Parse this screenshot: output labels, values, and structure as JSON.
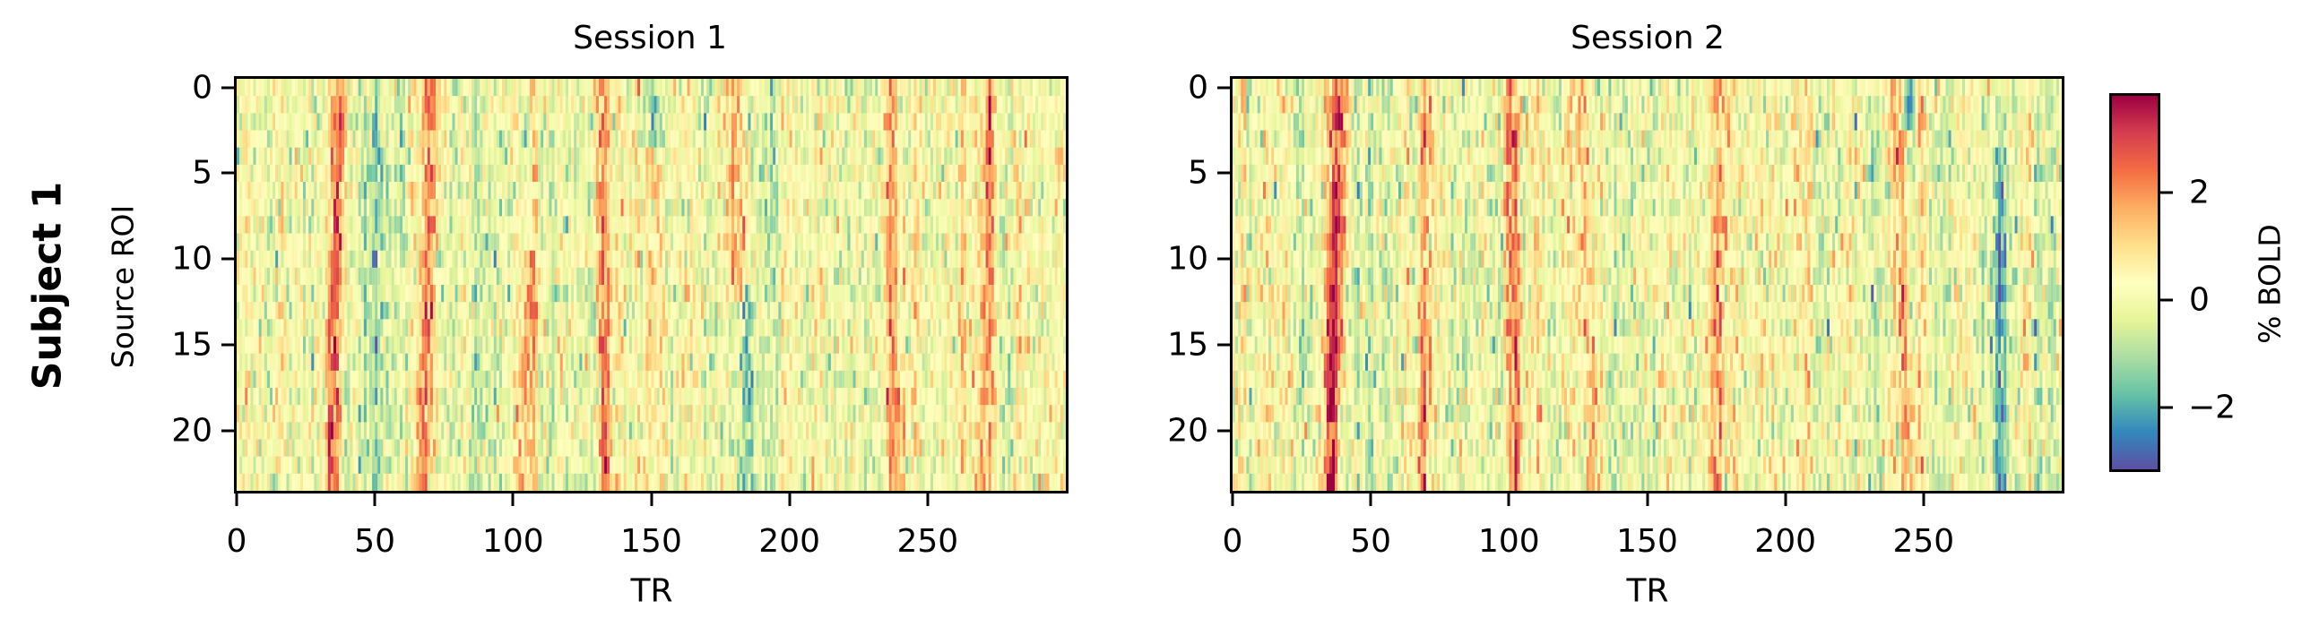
{
  "figure": {
    "row_label": "Subject 1",
    "panels": [
      {
        "title": "Session 1",
        "ylabel": "Source ROI",
        "xlabel": "TR",
        "xticks": [
          "0",
          "50",
          "100",
          "150",
          "200",
          "250"
        ],
        "yticks": [
          "0",
          "5",
          "10",
          "15",
          "20"
        ]
      },
      {
        "title": "Session 2",
        "ylabel": "",
        "xlabel": "TR",
        "xticks": [
          "0",
          "50",
          "100",
          "150",
          "200",
          "250"
        ],
        "yticks": [
          "0",
          "5",
          "10",
          "15",
          "20"
        ]
      }
    ],
    "colorbar": {
      "label": "% BOLD",
      "ticks": [
        "2",
        "0",
        "−2"
      ],
      "tick_values": [
        2,
        0,
        -2
      ],
      "vmin": -3.15,
      "vmax": 3.8,
      "colormap": "Spectral_r",
      "colors": [
        "#5e4fa2",
        "#3288bd",
        "#66c2a5",
        "#abdda4",
        "#e6f598",
        "#ffffbf",
        "#fee08b",
        "#fdae61",
        "#f46d43",
        "#d53e4f",
        "#9e0142"
      ]
    }
  },
  "chart_data": {
    "type": "heatmap",
    "title": "Subject 1",
    "colorbar_label": "% BOLD",
    "vlim": [
      -3.15,
      3.8
    ],
    "n_rows": 24,
    "n_cols": 300,
    "panels": [
      {
        "title": "Session 1",
        "xlabel": "TR",
        "ylabel": "Source ROI",
        "xlim": [
          0,
          300
        ],
        "ylim": [
          23.5,
          -0.5
        ],
        "xticks": [
          0,
          50,
          100,
          150,
          200,
          250
        ],
        "yticks": [
          0,
          5,
          10,
          15,
          20
        ],
        "seed": 17,
        "noise_sd": 0.85,
        "ridges": [
          {
            "tr_top": 37,
            "tr_bottom": 34,
            "amp": 2.6,
            "width": 2.2
          },
          {
            "tr_top": 70,
            "tr_bottom": 67,
            "amp": 2.1,
            "width": 2.0
          },
          {
            "tr_top": 108,
            "tr_bottom": 103,
            "amp": 1.9,
            "width": 2.0,
            "row_start": 10
          },
          {
            "tr_top": 131,
            "tr_bottom": 133,
            "amp": 2.2,
            "width": 1.8
          },
          {
            "tr_top": 179,
            "tr_bottom": 181,
            "amp": 1.9,
            "width": 2.0,
            "row_end": 12
          },
          {
            "tr_top": 236,
            "tr_bottom": 238,
            "amp": 1.8,
            "width": 2.0
          },
          {
            "tr_top": 272,
            "tr_bottom": 270,
            "amp": 2.0,
            "width": 2.0
          }
        ],
        "troughs": [
          {
            "tr_top": 150,
            "tr_bottom": 152,
            "amp": -2.2,
            "width": 2.5,
            "row_end": 3
          },
          {
            "tr_top": 184,
            "tr_bottom": 184,
            "amp": -2.0,
            "width": 1.5,
            "row_start": 12
          },
          {
            "tr_top": 53,
            "tr_bottom": 53,
            "amp": -1.2,
            "width": 4.0
          }
        ]
      },
      {
        "title": "Session 2",
        "xlabel": "TR",
        "ylabel": "",
        "xlim": [
          0,
          300
        ],
        "ylim": [
          23.5,
          -0.5
        ],
        "xticks": [
          0,
          50,
          100,
          150,
          200,
          250
        ],
        "yticks": [
          0,
          5,
          10,
          15,
          20
        ],
        "seed": 91,
        "noise_sd": 0.9,
        "ridges": [
          {
            "tr_top": 39,
            "tr_bottom": 35,
            "amp": 3.0,
            "width": 2.2
          },
          {
            "tr_top": 70,
            "tr_bottom": 68,
            "amp": 1.9,
            "width": 2.0
          },
          {
            "tr_top": 100,
            "tr_bottom": 102,
            "amp": 2.2,
            "width": 2.0
          },
          {
            "tr_top": 126,
            "tr_bottom": 130,
            "amp": 1.6,
            "width": 2.0
          },
          {
            "tr_top": 176,
            "tr_bottom": 174,
            "amp": 1.7,
            "width": 2.0
          },
          {
            "tr_top": 240,
            "tr_bottom": 244,
            "amp": 1.9,
            "width": 2.0
          }
        ],
        "troughs": [
          {
            "tr_top": 244,
            "tr_bottom": 244,
            "amp": -2.0,
            "width": 1.5,
            "row_end": 2
          },
          {
            "tr_top": 277,
            "tr_bottom": 277,
            "amp": -1.8,
            "width": 2.0,
            "row_start": 4
          }
        ]
      }
    ]
  }
}
